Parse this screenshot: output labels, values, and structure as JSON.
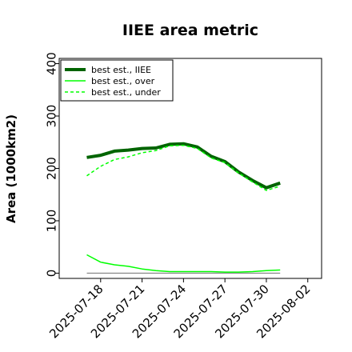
{
  "chart_data": {
    "type": "line",
    "title": "IIEE area metric",
    "xlabel": "",
    "ylabel": "Area (1000km2)",
    "ylim": [
      -10,
      410
    ],
    "xlim": [
      "2025-07-15",
      "2025-08-03"
    ],
    "yticks": [
      0,
      100,
      200,
      300,
      400
    ],
    "xticks": [
      "2025-07-18",
      "2025-07-21",
      "2025-07-24",
      "2025-07-27",
      "2025-07-30",
      "2025-08-02"
    ],
    "grid": false,
    "legend_position": "top-left",
    "x": [
      "2025-07-17",
      "2025-07-18",
      "2025-07-19",
      "2025-07-20",
      "2025-07-21",
      "2025-07-22",
      "2025-07-23",
      "2025-07-24",
      "2025-07-25",
      "2025-07-26",
      "2025-07-27",
      "2025-07-28",
      "2025-07-29",
      "2025-07-30",
      "2025-07-31"
    ],
    "series": [
      {
        "name": "best est., IIEE",
        "color": "#006400",
        "style": "solid",
        "values": [
          221,
          225,
          233,
          235,
          238,
          239,
          246,
          247,
          241,
          223,
          213,
          193,
          177,
          163,
          172
        ]
      },
      {
        "name": "best est., over",
        "color": "#00ff00",
        "style": "solid",
        "values": [
          35,
          21,
          16,
          13,
          8,
          5,
          3,
          3,
          3,
          3,
          2,
          2,
          3,
          5,
          6
        ]
      },
      {
        "name": "best est., under",
        "color": "#00ff00",
        "style": "dashed",
        "values": [
          186,
          204,
          217,
          222,
          230,
          234,
          243,
          244,
          238,
          220,
          211,
          191,
          174,
          158,
          166
        ]
      }
    ],
    "reference_line": {
      "y": 0,
      "x_start": "2025-07-17",
      "x_end": "2025-07-31",
      "color": "#808080"
    }
  }
}
